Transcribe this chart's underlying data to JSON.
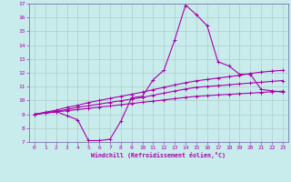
{
  "xlabel": "Windchill (Refroidissement éolien,°C)",
  "xlim": [
    -0.5,
    23.5
  ],
  "ylim": [
    7,
    17
  ],
  "xticks": [
    0,
    1,
    2,
    3,
    4,
    5,
    6,
    7,
    8,
    9,
    10,
    11,
    12,
    13,
    14,
    15,
    16,
    17,
    18,
    19,
    20,
    21,
    22,
    23
  ],
  "yticks": [
    7,
    8,
    9,
    10,
    11,
    12,
    13,
    14,
    15,
    16,
    17
  ],
  "bg_color": "#c8ecec",
  "line_color": "#aa00aa",
  "grid_color": "#b0cccc",
  "spine_color": "#7777aa",
  "series": [
    {
      "x": [
        0,
        1,
        2,
        3,
        4,
        5,
        6,
        7,
        8,
        9,
        10,
        11,
        12,
        13,
        14,
        15,
        16,
        17,
        18,
        19,
        20,
        21,
        22,
        23
      ],
      "y": [
        9.0,
        9.1,
        9.2,
        8.9,
        8.6,
        7.1,
        7.1,
        7.2,
        8.5,
        10.2,
        10.3,
        11.5,
        12.2,
        14.4,
        16.9,
        16.2,
        15.4,
        12.8,
        12.5,
        11.9,
        11.9,
        10.8,
        10.7,
        10.6
      ]
    },
    {
      "x": [
        0,
        1,
        2,
        3,
        4,
        5,
        6,
        7,
        8,
        9,
        10,
        11,
        12,
        13,
        14,
        15,
        16,
        17,
        18,
        19,
        20,
        21,
        22,
        23
      ],
      "y": [
        9.0,
        9.08,
        9.17,
        9.26,
        9.34,
        9.43,
        9.52,
        9.6,
        9.69,
        9.78,
        9.87,
        9.95,
        10.04,
        10.13,
        10.22,
        10.3,
        10.35,
        10.4,
        10.44,
        10.49,
        10.53,
        10.58,
        10.63,
        10.67
      ]
    },
    {
      "x": [
        0,
        1,
        2,
        3,
        4,
        5,
        6,
        7,
        8,
        9,
        10,
        11,
        12,
        13,
        14,
        15,
        16,
        17,
        18,
        19,
        20,
        21,
        22,
        23
      ],
      "y": [
        9.0,
        9.1,
        9.2,
        9.35,
        9.5,
        9.62,
        9.74,
        9.86,
        9.98,
        10.1,
        10.22,
        10.38,
        10.53,
        10.68,
        10.83,
        10.95,
        11.01,
        11.07,
        11.13,
        11.2,
        11.26,
        11.32,
        11.38,
        11.44
      ]
    },
    {
      "x": [
        0,
        1,
        2,
        3,
        4,
        5,
        6,
        7,
        8,
        9,
        10,
        11,
        12,
        13,
        14,
        15,
        16,
        17,
        18,
        19,
        20,
        21,
        22,
        23
      ],
      "y": [
        9.0,
        9.15,
        9.3,
        9.5,
        9.65,
        9.85,
        10.0,
        10.15,
        10.3,
        10.45,
        10.6,
        10.78,
        10.95,
        11.12,
        11.28,
        11.42,
        11.52,
        11.62,
        11.72,
        11.82,
        11.95,
        12.05,
        12.12,
        12.18
      ]
    }
  ]
}
